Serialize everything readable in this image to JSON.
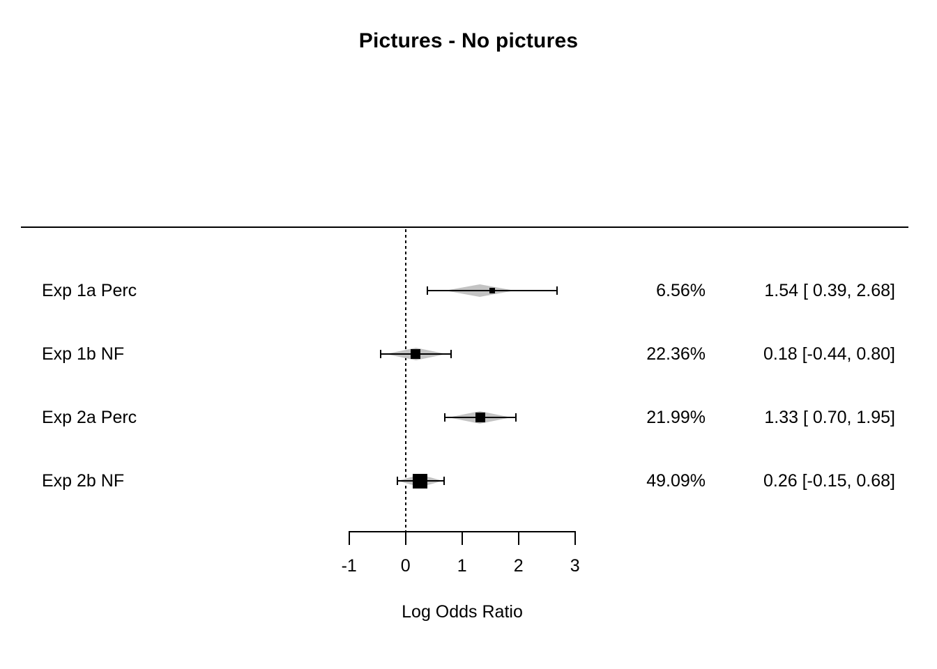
{
  "title": "Pictures - No pictures",
  "chart_data": {
    "type": "forest",
    "title": "Pictures - No pictures",
    "xlabel": "Log Odds Ratio",
    "x_ticks": [
      -1,
      0,
      1,
      2,
      3
    ],
    "x_tick_labels": [
      "-1",
      "0",
      "1",
      "2",
      "3"
    ],
    "xlim": [
      -1,
      3
    ],
    "reference_line_x": 0,
    "legend_position": "none",
    "grid": false,
    "studies": [
      {
        "label": "Exp 1a Perc",
        "weight_label": "6.56%",
        "weight_pct": 6.56,
        "estimate": 1.54,
        "ci_lower": 0.39,
        "ci_upper": 2.68,
        "estimate_label": "1.54 [ 0.39, 2.68]",
        "diamond_lower": 0.7,
        "diamond_upper": 1.93
      },
      {
        "label": "Exp 1b NF",
        "weight_label": "22.36%",
        "weight_pct": 22.36,
        "estimate": 0.18,
        "ci_lower": -0.44,
        "ci_upper": 0.8,
        "estimate_label": "0.18 [-0.44, 0.80]",
        "diamond_lower": -0.35,
        "diamond_upper": 0.72
      },
      {
        "label": "Exp 2a Perc",
        "weight_label": "21.99%",
        "weight_pct": 21.99,
        "estimate": 1.33,
        "ci_lower": 0.7,
        "ci_upper": 1.95,
        "estimate_label": "1.33 [ 0.70, 1.95]",
        "diamond_lower": 0.76,
        "diamond_upper": 1.87
      },
      {
        "label": "Exp 2b NF",
        "weight_label": "49.09%",
        "weight_pct": 49.09,
        "estimate": 0.26,
        "ci_lower": -0.15,
        "ci_upper": 0.68,
        "estimate_label": "0.26 [-0.15, 0.68]",
        "diamond_lower": -0.14,
        "diamond_upper": 0.66
      }
    ]
  },
  "colors": {
    "ink": "#000000",
    "background": "#ffffff",
    "diamond_fill": "#c3c3c3"
  }
}
